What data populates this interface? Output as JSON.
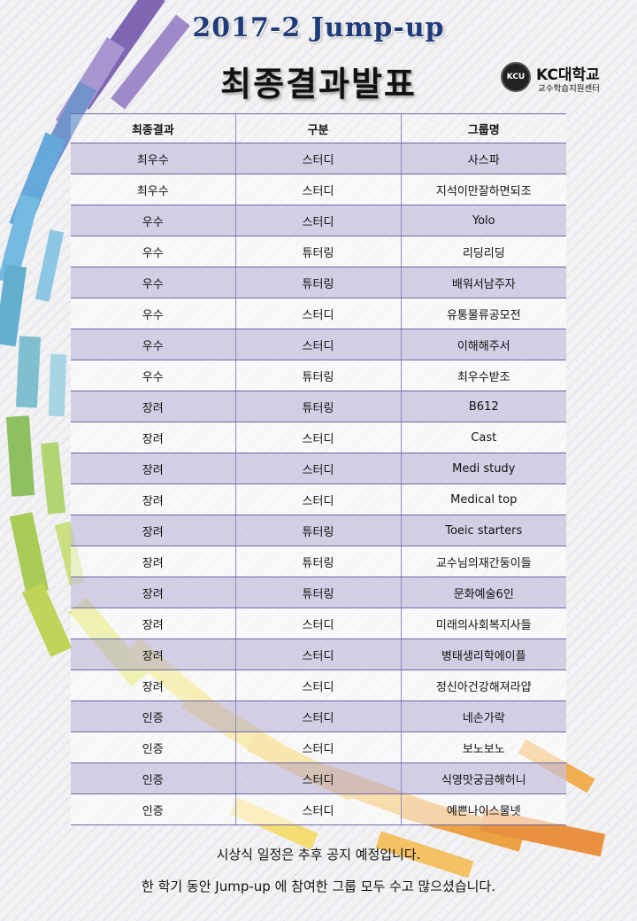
{
  "header": {
    "title_en": "2017-2 Jump-up",
    "title_ko": "최종결과발표"
  },
  "logo": {
    "emblem_text": "KCU",
    "name": "KC대학교",
    "subtitle": "교수학습지원센터"
  },
  "table": {
    "headers": [
      "최종결과",
      "구분",
      "그룹명"
    ],
    "rows": [
      {
        "result": "최우수",
        "type": "스터디",
        "group": "사스파"
      },
      {
        "result": "최우수",
        "type": "스터디",
        "group": "지석이만잘하면되조"
      },
      {
        "result": "우수",
        "type": "스터디",
        "group": "Yolo"
      },
      {
        "result": "우수",
        "type": "튜터링",
        "group": "리딩리딩"
      },
      {
        "result": "우수",
        "type": "튜터링",
        "group": "배워서남주자"
      },
      {
        "result": "우수",
        "type": "스터디",
        "group": "유통물류공모전"
      },
      {
        "result": "우수",
        "type": "스터디",
        "group": "이해해주서"
      },
      {
        "result": "우수",
        "type": "튜터링",
        "group": "최우수받조"
      },
      {
        "result": "장려",
        "type": "튜터링",
        "group": "B612"
      },
      {
        "result": "장려",
        "type": "스터디",
        "group": "Cast"
      },
      {
        "result": "장려",
        "type": "스터디",
        "group": "Medi study"
      },
      {
        "result": "장려",
        "type": "스터디",
        "group": "Medical top"
      },
      {
        "result": "장려",
        "type": "튜터링",
        "group": "Toeic starters"
      },
      {
        "result": "장려",
        "type": "튜터링",
        "group": "교수님의재간둥이들"
      },
      {
        "result": "장려",
        "type": "튜터링",
        "group": "문화예술6인"
      },
      {
        "result": "장려",
        "type": "스터디",
        "group": "미래의사회복지사들"
      },
      {
        "result": "장려",
        "type": "스터디",
        "group": "병태생리학에이플"
      },
      {
        "result": "장려",
        "type": "스터디",
        "group": "정신아건강해져라얍"
      },
      {
        "result": "인증",
        "type": "스터디",
        "group": "네손가락"
      },
      {
        "result": "인증",
        "type": "스터디",
        "group": "보노보노"
      },
      {
        "result": "인증",
        "type": "스터디",
        "group": "식영맛궁금해허니"
      },
      {
        "result": "인증",
        "type": "스터디",
        "group": "예쁜나이스물넷"
      }
    ]
  },
  "footer": {
    "line1": "시상식 일정은 추후 공지 예정입니다.",
    "line2": "한 학기 동안 Jump-up 에 참여한 그룹 모두 수고 많으셨습니다."
  }
}
